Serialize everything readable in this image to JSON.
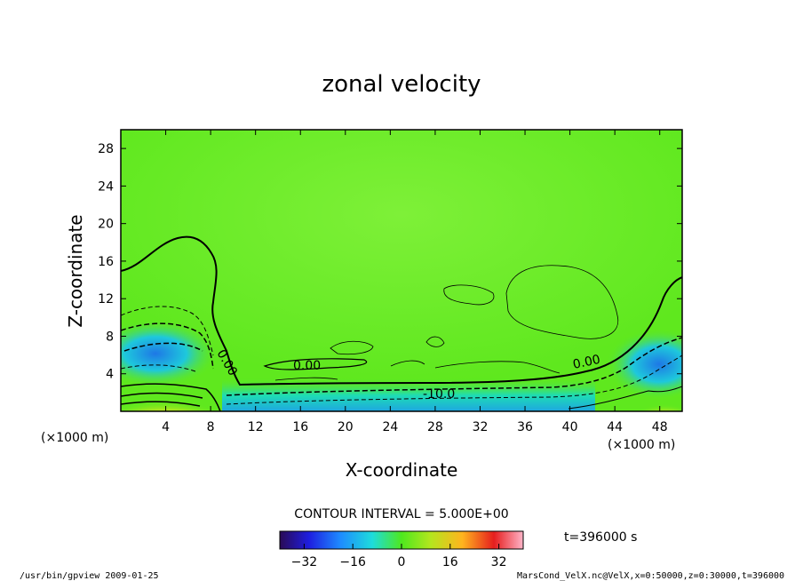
{
  "chart_data": {
    "type": "heatmap",
    "title": "zonal velocity",
    "xlabel": "X-coordinate",
    "ylabel": "Z-coordinate",
    "x_unit_label": "(×1000 m)",
    "z_unit_label": "(×1000 m)",
    "xlim": [
      0,
      50
    ],
    "ylim": [
      0,
      30
    ],
    "x_ticks": [
      4,
      8,
      12,
      16,
      20,
      24,
      28,
      32,
      36,
      40,
      44,
      48
    ],
    "y_ticks": [
      4,
      8,
      12,
      16,
      20,
      24,
      28
    ],
    "contour_labels": [
      "0.00",
      "0.00",
      "0.00",
      "-10.0"
    ],
    "contour_interval_text": "CONTOUR INTERVAL = 5.000E+00",
    "time_text": "t=396000 s",
    "colorbar": {
      "range": [
        -40,
        40
      ],
      "ticks": [
        -32,
        -16,
        0,
        16,
        32
      ],
      "tick_labels": [
        "−32",
        "−16",
        "0",
        "16",
        "32"
      ]
    }
  },
  "footer": {
    "left": "/usr/bin/gpview  2009-01-25",
    "right": "MarsCond_VelX.nc@VelX,x=0:50000,z=0:30000,t=396000"
  }
}
